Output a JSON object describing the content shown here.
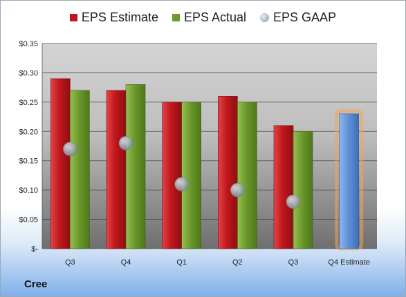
{
  "chart_data": {
    "type": "bar",
    "categories": [
      "Q3",
      "Q4",
      "Q1",
      "Q2",
      "Q3",
      "Q4 Estimate"
    ],
    "series": [
      {
        "name": "EPS Estimate",
        "values": [
          0.29,
          0.27,
          0.25,
          0.26,
          0.21,
          null
        ]
      },
      {
        "name": "EPS Actual",
        "values": [
          0.27,
          0.28,
          0.25,
          0.25,
          0.2,
          null
        ]
      },
      {
        "name": "EPS GAAP",
        "type": "scatter",
        "values": [
          0.17,
          0.18,
          0.11,
          0.1,
          0.08,
          null
        ]
      },
      {
        "name": "",
        "values": [
          null,
          null,
          null,
          null,
          null,
          0.23
        ]
      }
    ],
    "ylim": [
      0,
      0.35
    ],
    "yticks": [
      0,
      0.05,
      0.1,
      0.15,
      0.2,
      0.25,
      0.3,
      0.35
    ],
    "ytick_labels": [
      "$-",
      "$0.05",
      "$0.10",
      "$0.15",
      "$0.20",
      "$0.25",
      "$0.30",
      "$0.35"
    ],
    "grid": true,
    "legend_position": "top",
    "colors": {
      "estimate": "#c0171b",
      "actual": "#6c9a2b",
      "gaap": "#9aa4b4",
      "forecast": "#5b8fd6",
      "forecast_glow": "#f3a64b"
    }
  },
  "footer": {
    "company": "Cree"
  }
}
